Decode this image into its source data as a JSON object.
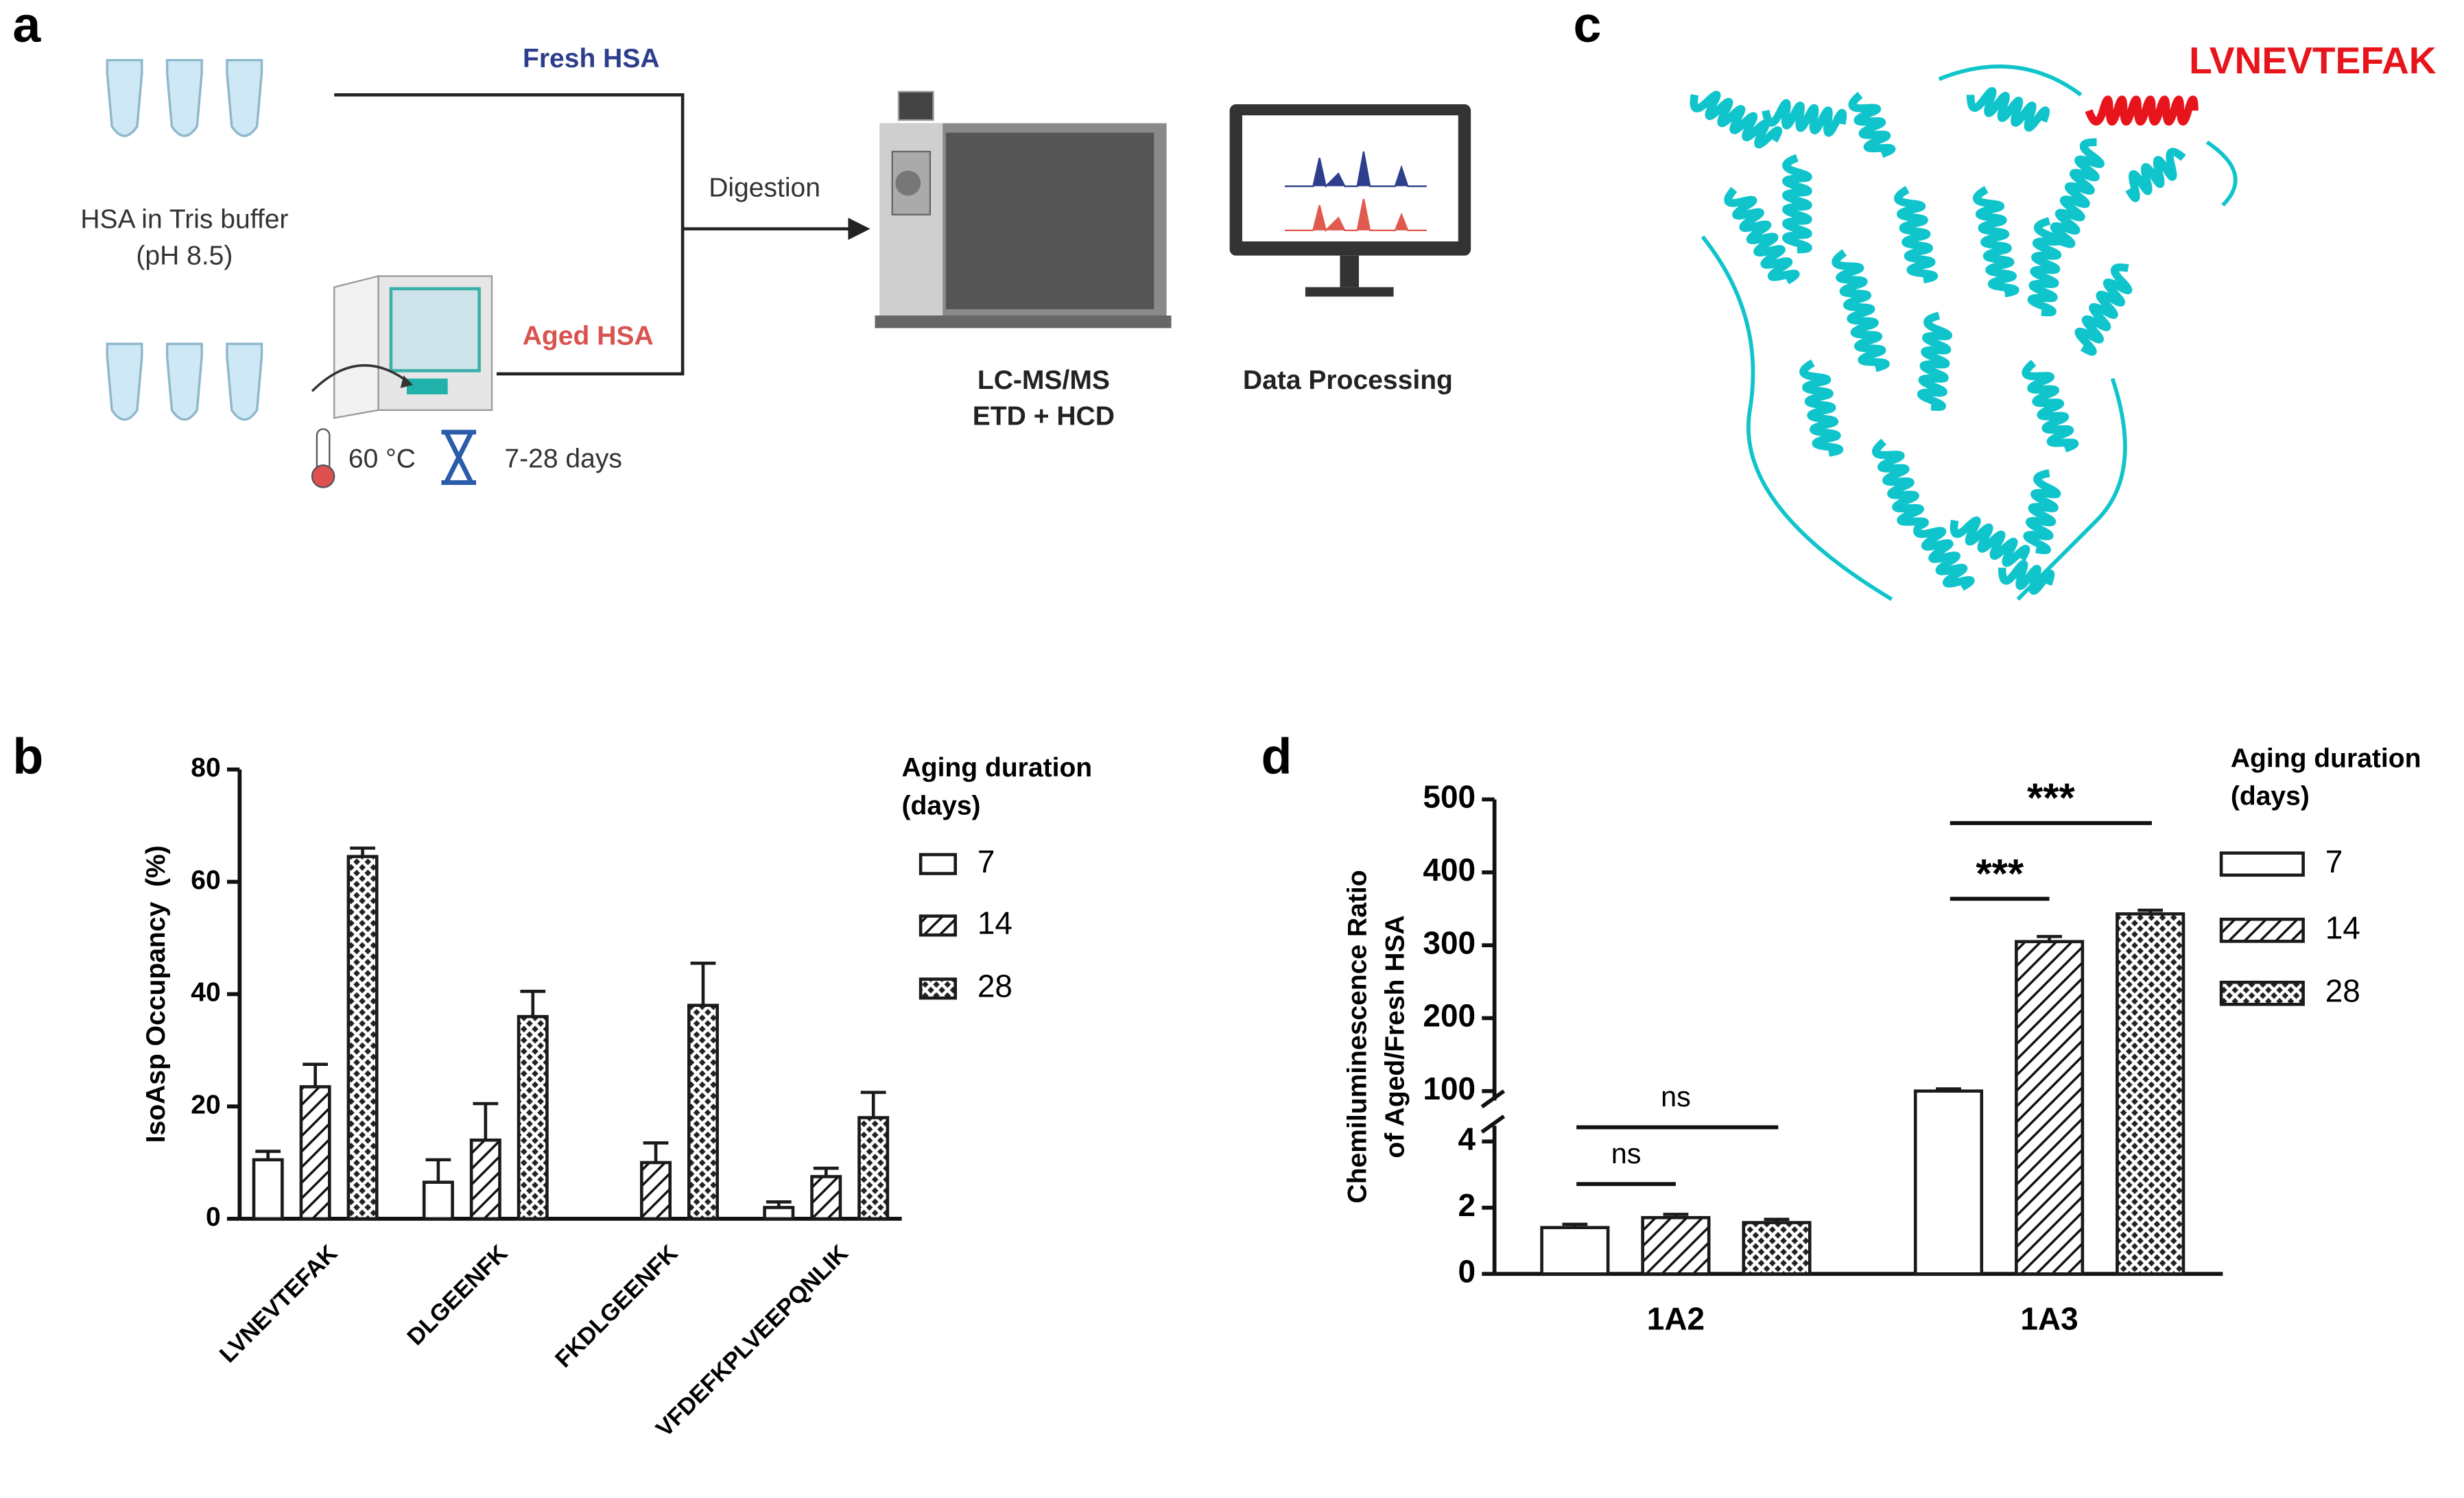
{
  "panel_labels": [
    "a",
    "b",
    "c",
    "d"
  ],
  "workflow": {
    "fresh": "Fresh HSA",
    "aged": "Aged HSA",
    "sample": [
      "HSA in Tris buffer",
      "(pH 8.5)"
    ],
    "step": "Digestion",
    "temperature": "60 °C",
    "duration": "7-28 days",
    "instrument": [
      "LC-MS/MS",
      "ETD + HCD"
    ],
    "analysis": "Data Processing"
  },
  "structure": {
    "label": "LVNEVTEFAK"
  },
  "chart_data": [
    {
      "type": "bar",
      "ylabel": "IsoAsp Occupancy  (%)",
      "categories": [
        "LVNEVTEFAK",
        "DLGEENFK",
        "FKDLGEENFK",
        "VFDEFKPLVEEPQNLIK"
      ],
      "legend_title": [
        "Aging duration",
        "(days)"
      ],
      "series": [
        {
          "name": "7",
          "color": "#1a1a1a",
          "pattern": "none",
          "values": [
            10.5,
            6.5,
            null,
            2
          ],
          "errors": [
            1.5,
            4,
            null,
            1
          ]
        },
        {
          "name": "14",
          "color": "#1a1a1a",
          "pattern": "hatch",
          "values": [
            23.5,
            14,
            10,
            7.5
          ],
          "errors": [
            4,
            6.5,
            3.5,
            1.5
          ]
        },
        {
          "name": "28",
          "color": "#1a1a1a",
          "pattern": "crosshatch",
          "values": [
            64.5,
            36,
            38,
            18
          ],
          "errors": [
            1.5,
            4.5,
            7.5,
            4.5
          ]
        }
      ],
      "ylim": [
        0,
        80
      ],
      "yticks": [
        0,
        20,
        40,
        60,
        80
      ]
    },
    {
      "type": "bar",
      "ylabel": [
        "Chemiluminescence Ratio",
        "of Aged/Fresh HSA"
      ],
      "categories": [
        "1A2",
        "1A3"
      ],
      "legend_title": [
        "Aging duration",
        "(days)"
      ],
      "series": [
        {
          "name": "7",
          "color": "#1a1a1a",
          "pattern": "none",
          "values": [
            1.4,
            100
          ],
          "errors": [
            0.1,
            3
          ]
        },
        {
          "name": "14",
          "color": "#1a1a1a",
          "pattern": "hatch",
          "values": [
            1.7,
            305
          ],
          "errors": [
            0.1,
            7
          ]
        },
        {
          "name": "28",
          "color": "#1a1a1a",
          "pattern": "crosshatch",
          "values": [
            1.55,
            343
          ],
          "errors": [
            0.1,
            5
          ]
        }
      ],
      "y_segments": [
        {
          "ylim": [
            0,
            4
          ],
          "yticks": [
            0,
            2,
            4
          ]
        },
        {
          "ylim": [
            100,
            500
          ],
          "yticks": [
            100,
            200,
            300,
            400,
            500
          ]
        }
      ],
      "annotations": [
        "ns",
        "ns",
        "***",
        "***"
      ]
    }
  ]
}
